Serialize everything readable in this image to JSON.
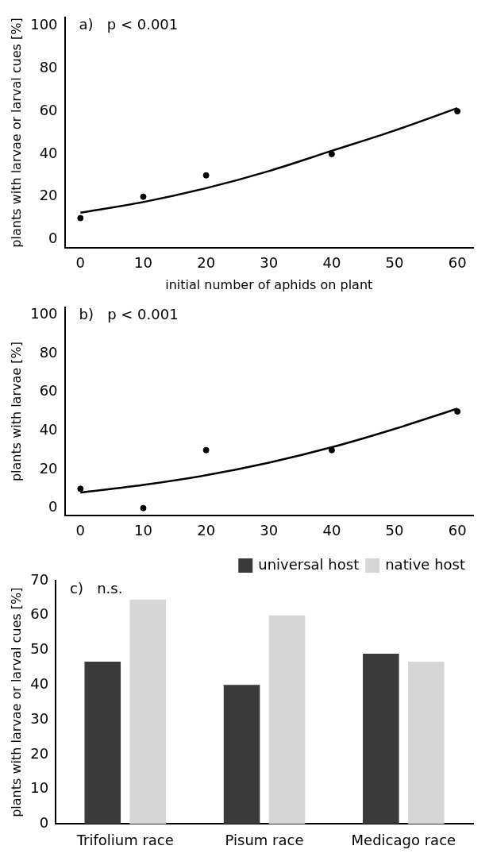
{
  "chart_data": [
    {
      "type": "scatter",
      "annotations": [
        "a)   p < 0.001"
      ],
      "xlabel": "initial number of aphids on plant",
      "ylabel": "plants with larvae or larval cues [%]",
      "xlim": [
        -2.5,
        62.5
      ],
      "ylim": [
        -4,
        104
      ],
      "xticks": [
        0,
        10,
        20,
        30,
        40,
        50,
        60
      ],
      "yticks": [
        0,
        20,
        40,
        60,
        80,
        100
      ],
      "grid": false,
      "legend": false,
      "series": [
        {
          "type": "scatter",
          "x": [
            0,
            10,
            20,
            40,
            60
          ],
          "values": [
            10,
            20,
            30,
            40,
            60
          ],
          "color": "#000000",
          "marker": "circle"
        },
        {
          "type": "line",
          "x": [
            0,
            10,
            20,
            30,
            40,
            50,
            60
          ],
          "values": [
            12.5,
            17.5,
            24,
            32,
            41.5,
            51,
            61.5
          ],
          "color": "#000000",
          "marker": "none",
          "line_style": "solid"
        }
      ]
    },
    {
      "type": "scatter",
      "annotations": [
        "b)   p < 0.001"
      ],
      "ylabel": "plants with larvae [%]",
      "xlim": [
        -2.5,
        62.5
      ],
      "ylim": [
        -4,
        104
      ],
      "xticks": [
        0,
        10,
        20,
        30,
        40,
        50,
        60
      ],
      "yticks": [
        0,
        20,
        40,
        60,
        80,
        100
      ],
      "grid": false,
      "legend": false,
      "series": [
        {
          "type": "scatter",
          "x": [
            0,
            10,
            20,
            40,
            60
          ],
          "values": [
            10,
            0,
            30,
            30,
            50
          ],
          "color": "#000000",
          "marker": "circle"
        },
        {
          "type": "line",
          "x": [
            0,
            10,
            20,
            30,
            40,
            50,
            60
          ],
          "values": [
            8,
            12,
            17,
            23.5,
            31.5,
            41,
            51.5
          ],
          "color": "#000000",
          "marker": "none",
          "line_style": "solid"
        }
      ]
    },
    {
      "type": "bar",
      "annotations": [
        "c)   n.s."
      ],
      "ylabel": "plants with larvae or larval cues [%]",
      "categories": [
        "Trifolium race",
        "Pisum race",
        "Medicago race"
      ],
      "ylim": [
        0,
        70
      ],
      "yticks": [
        0,
        10,
        20,
        30,
        40,
        50,
        60,
        70
      ],
      "grid": false,
      "legend": "top right",
      "series": [
        {
          "name": "universal host",
          "color": "#3a3a3a",
          "values": [
            46.7,
            40,
            49
          ]
        },
        {
          "name": "native host",
          "color": "#d6d6d6",
          "values": [
            64.5,
            60,
            46.7
          ]
        }
      ]
    }
  ]
}
